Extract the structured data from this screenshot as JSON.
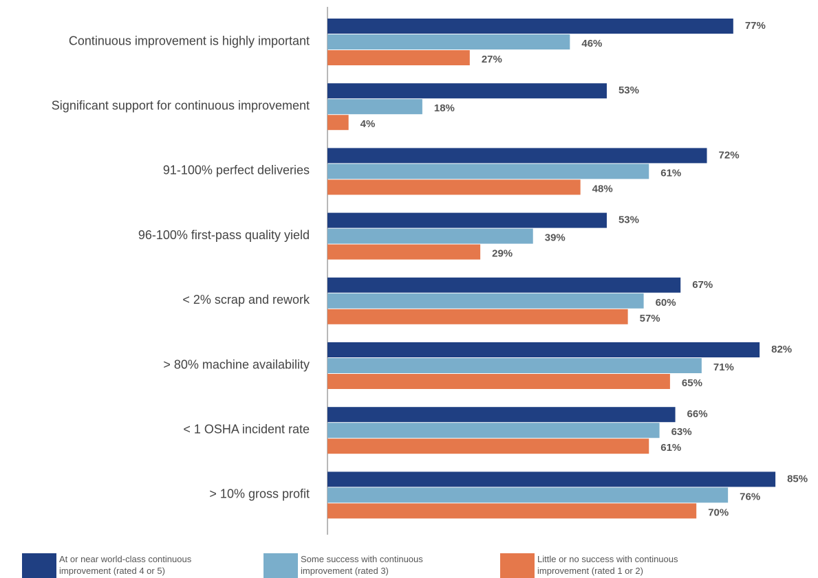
{
  "chart_data": {
    "type": "bar",
    "orientation": "horizontal",
    "categories": [
      "Continuous improvement is highly important",
      "Significant support for continuous improvement",
      "91-100% perfect deliveries",
      "96-100% first-pass quality yield",
      "< 2% scrap and rework",
      "> 80% machine availability",
      "< 1 OSHA incident rate",
      "> 10% gross profit"
    ],
    "series": [
      {
        "name": "At or near world-class continuous improvement (rated 4 or 5)",
        "color": "#1f3f82",
        "values": [
          77,
          53,
          72,
          53,
          67,
          82,
          66,
          85
        ],
        "value_labels": [
          "77%",
          "53%",
          "72%",
          "53%",
          "67%",
          "82%",
          "66%",
          "85%"
        ]
      },
      {
        "name": "Some success with continuous improvement (rated 3)",
        "color": "#7aaecb",
        "values": [
          46,
          18,
          61,
          39,
          60,
          71,
          63,
          76
        ],
        "value_labels": [
          "46%",
          "18%",
          "61%",
          "39%",
          "60%",
          "71%",
          "63%",
          "76%"
        ]
      },
      {
        "name": "Little or no success with continuous improvement (rated 1 or 2)",
        "color": "#e5784b",
        "values": [
          27,
          4,
          48,
          29,
          57,
          65,
          61,
          70
        ],
        "value_labels": [
          "27%",
          "4%",
          "48%",
          "29%",
          "57%",
          "65%",
          "61%",
          "70%"
        ]
      }
    ],
    "xlim": [
      0,
      100
    ]
  }
}
